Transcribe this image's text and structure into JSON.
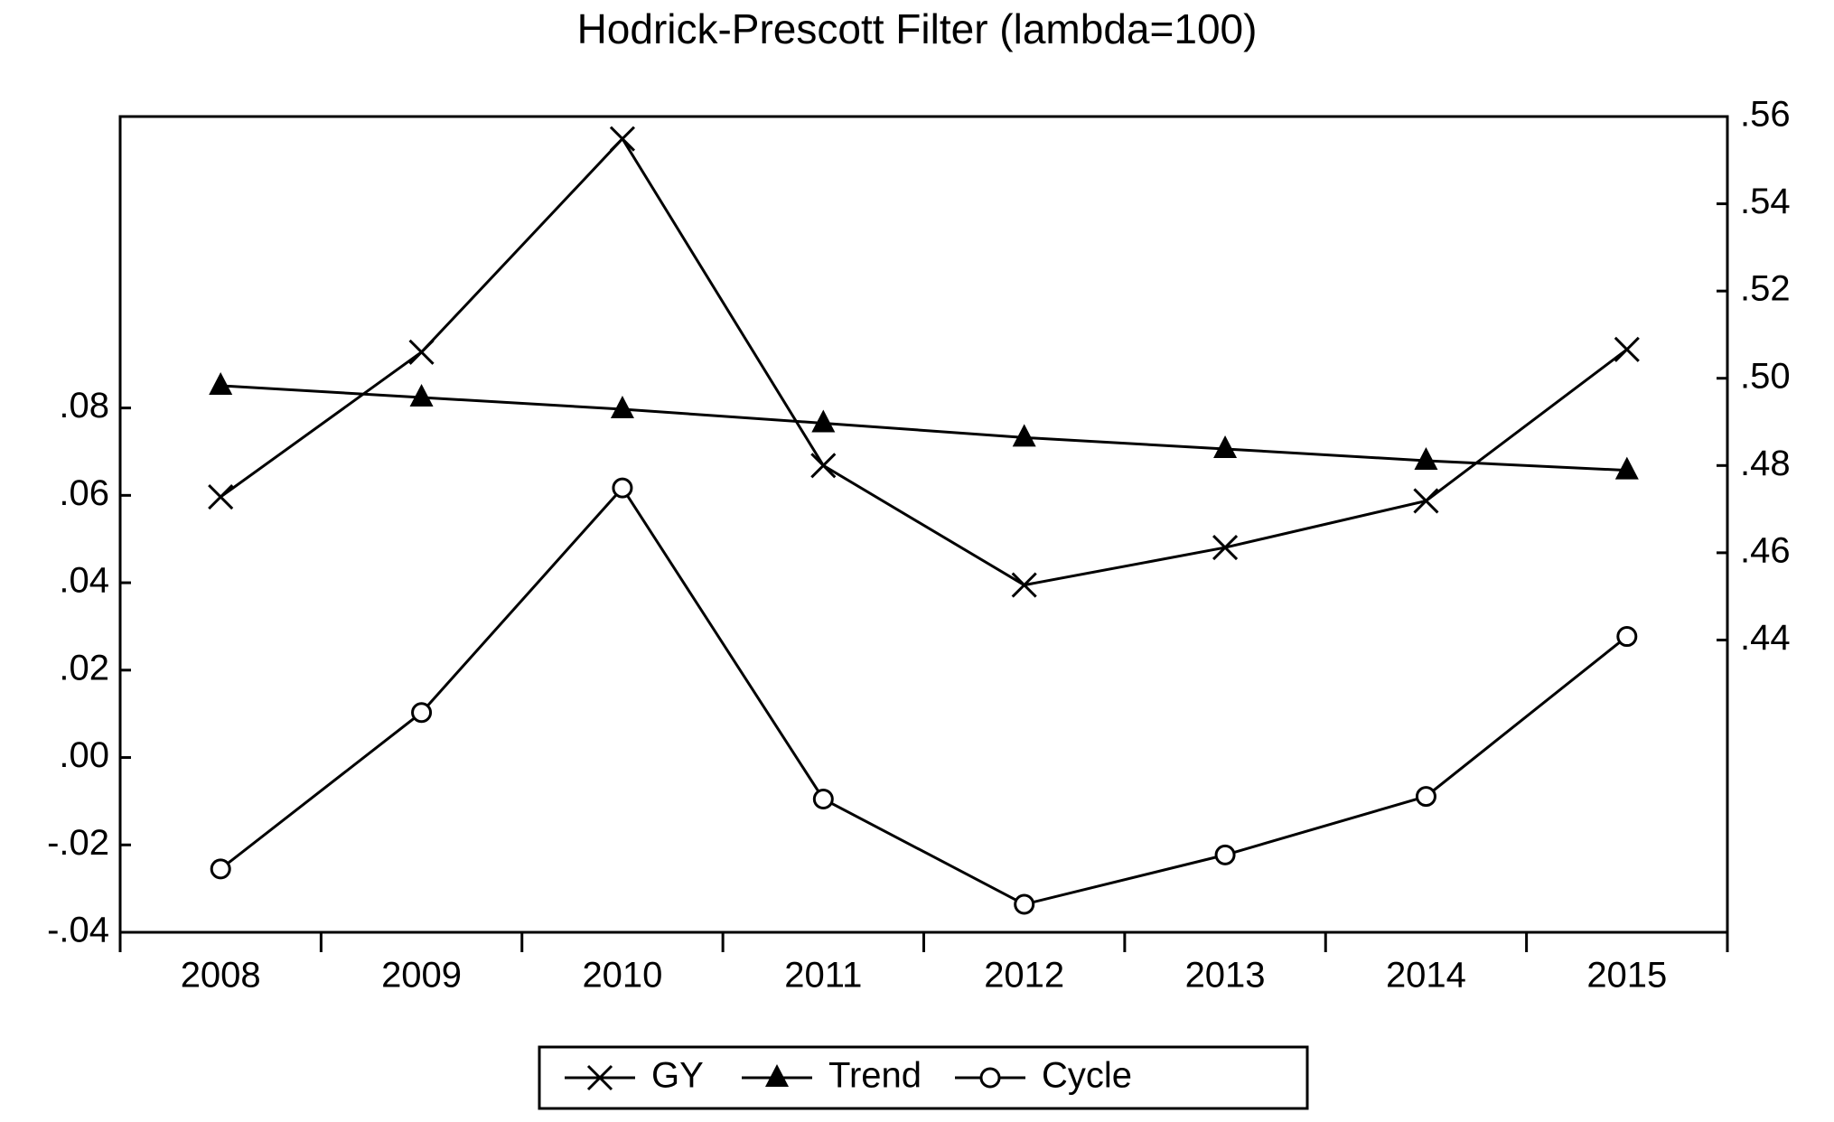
{
  "chart_data": {
    "type": "line",
    "title": "Hodrick-Prescott Filter (lambda=100)",
    "categories": [
      "2008",
      "2009",
      "2010",
      "2011",
      "2012",
      "2013",
      "2014",
      "2015"
    ],
    "series": [
      {
        "name": "GY",
        "color": "#000000",
        "marker": "x",
        "axis": "y2",
        "values": [
          0.4728,
          0.506,
          0.5549,
          0.48,
          0.4526,
          0.4612,
          0.4719,
          0.5066
        ]
      },
      {
        "name": "Trend",
        "color": "#000000",
        "marker": "triangle",
        "axis": "y2",
        "values": [
          0.4983,
          0.4956,
          0.4929,
          0.4897,
          0.4864,
          0.4838,
          0.4811,
          0.4789
        ]
      },
      {
        "name": "Cycle",
        "color": "#000000",
        "marker": "circle",
        "values": [
          -0.0255,
          0.0103,
          0.0617,
          -0.0095,
          -0.0336,
          -0.0223,
          -0.0089,
          0.0277
        ]
      }
    ],
    "ylim": [
      -0.04,
      0.1467
    ],
    "yticks": [
      {
        "value": -0.04,
        "label": "-.04"
      },
      {
        "value": -0.02,
        "label": "-.02"
      },
      {
        "value": 0,
        "label": ".00"
      },
      {
        "value": 0.02,
        "label": ".02"
      },
      {
        "value": 0.04,
        "label": ".04"
      },
      {
        "value": 0.06,
        "label": ".06"
      },
      {
        "value": 0.08,
        "label": ".08"
      }
    ],
    "y2lim": [
      0.373,
      0.56
    ],
    "y2ticks": [
      {
        "value": 0.44,
        "label": ".44"
      },
      {
        "value": 0.46,
        "label": ".46"
      },
      {
        "value": 0.48,
        "label": ".48"
      },
      {
        "value": 0.5,
        "label": ".50"
      },
      {
        "value": 0.52,
        "label": ".52"
      },
      {
        "value": 0.54,
        "label": ".54"
      },
      {
        "value": 0.56,
        "label": ".56"
      }
    ],
    "grid": false,
    "legend": "bottom"
  }
}
